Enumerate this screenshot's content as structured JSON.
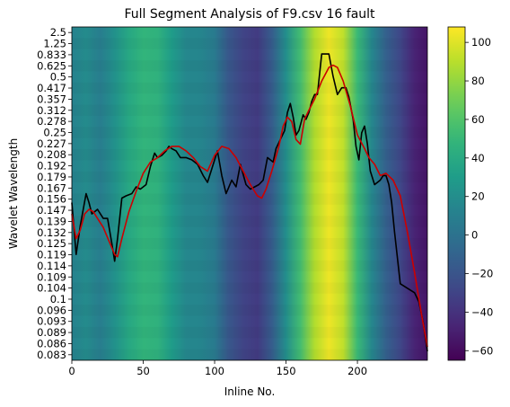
{
  "chart_data": {
    "type": "heatmap",
    "title": "Full Segment Analysis of F9.csv 16 fault",
    "xlabel": "Inline No.",
    "ylabel": "Wavelet Wavelength",
    "xlim": [
      0,
      249
    ],
    "x_ticks": [
      0,
      50,
      100,
      150,
      200
    ],
    "y_tick_labels": [
      "2.5",
      "1.25",
      "0.833",
      "0.625",
      "0.5",
      "0.417",
      "0.357",
      "0.312",
      "0.278",
      "0.25",
      "0.227",
      "0.208",
      "0.192",
      "0.179",
      "0.167",
      "0.156",
      "0.147",
      "0.139",
      "0.132",
      "0.125",
      "0.119",
      "0.114",
      "0.109",
      "0.104",
      "0.1",
      "0.096",
      "0.093",
      "0.089",
      "0.086",
      "0.083"
    ],
    "colorbar": {
      "colormap": "viridis",
      "range": [
        -65,
        108
      ],
      "ticks": [
        -60,
        -40,
        -20,
        0,
        20,
        40,
        60,
        80,
        100
      ]
    },
    "heatmap_columns": [
      {
        "x": 0,
        "value": 12
      },
      {
        "x": 10,
        "value": 18
      },
      {
        "x": 20,
        "value": 8
      },
      {
        "x": 30,
        "value": 22
      },
      {
        "x": 40,
        "value": 38
      },
      {
        "x": 50,
        "value": 48
      },
      {
        "x": 60,
        "value": 46
      },
      {
        "x": 70,
        "value": 30
      },
      {
        "x": 80,
        "value": 15
      },
      {
        "x": 90,
        "value": 14
      },
      {
        "x": 100,
        "value": 6
      },
      {
        "x": 110,
        "value": -18
      },
      {
        "x": 120,
        "value": -30
      },
      {
        "x": 130,
        "value": -35
      },
      {
        "x": 140,
        "value": -15
      },
      {
        "x": 150,
        "value": 20
      },
      {
        "x": 160,
        "value": 55
      },
      {
        "x": 170,
        "value": 88
      },
      {
        "x": 180,
        "value": 104
      },
      {
        "x": 190,
        "value": 92
      },
      {
        "x": 200,
        "value": 52
      },
      {
        "x": 210,
        "value": 15
      },
      {
        "x": 220,
        "value": -12
      },
      {
        "x": 230,
        "value": -28
      },
      {
        "x": 240,
        "value": -48
      },
      {
        "x": 249,
        "value": -55
      }
    ],
    "series": [
      {
        "color": "#000000",
        "x": [
          0,
          3,
          6,
          10,
          12,
          14,
          16,
          18,
          20,
          22,
          25,
          28,
          30,
          32,
          35,
          38,
          42,
          45,
          48,
          52,
          55,
          58,
          60,
          63,
          66,
          68,
          70,
          73,
          76,
          80,
          84,
          88,
          92,
          95,
          98,
          102,
          105,
          108,
          112,
          115,
          118,
          122,
          125,
          128,
          131,
          134,
          137,
          141,
          143,
          146,
          149,
          151,
          153,
          155,
          157,
          159,
          162,
          164,
          166,
          168,
          170,
          172,
          175,
          177,
          180,
          183,
          186,
          189,
          192,
          194,
          197,
          199,
          201,
          203,
          205,
          207,
          209,
          212,
          216,
          218,
          220,
          222,
          224,
          226,
          230,
          235,
          240,
          243,
          246,
          249
        ],
        "y": [
          0.8,
          -1.5,
          -0.2,
          1.2,
          0.8,
          0.3,
          0.4,
          0.5,
          0.3,
          0.1,
          0.1,
          -1.0,
          -1.8,
          -0.8,
          1.0,
          1.1,
          1.2,
          1.5,
          1.4,
          1.6,
          2.4,
          3.0,
          2.8,
          2.9,
          3.1,
          3.3,
          3.2,
          3.1,
          2.8,
          2.8,
          2.7,
          2.5,
          2.0,
          1.7,
          2.3,
          3.1,
          2.0,
          1.2,
          1.8,
          1.5,
          2.5,
          1.6,
          1.4,
          1.5,
          1.6,
          1.8,
          2.8,
          2.6,
          3.2,
          3.6,
          4.0,
          4.8,
          5.2,
          4.6,
          3.8,
          4.0,
          4.7,
          4.5,
          4.8,
          5.3,
          5.6,
          5.6,
          7.4,
          7.4,
          7.4,
          6.4,
          5.6,
          5.9,
          5.9,
          5.5,
          4.5,
          3.3,
          2.7,
          3.9,
          4.2,
          3.4,
          2.2,
          1.6,
          1.8,
          2.0,
          2.0,
          1.6,
          0.8,
          -0.5,
          -2.8,
          -3.0,
          -3.2,
          -3.6,
          -4.5,
          -5.8
        ]
      },
      {
        "color": "#cc0000",
        "x": [
          0,
          3,
          6,
          9,
          12,
          15,
          18,
          22,
          26,
          30,
          32,
          35,
          40,
          45,
          50,
          55,
          60,
          65,
          70,
          75,
          80,
          85,
          90,
          95,
          100,
          105,
          110,
          115,
          120,
          125,
          130,
          133,
          136,
          140,
          145,
          148,
          151,
          154,
          157,
          160,
          163,
          166,
          170,
          175,
          180,
          183,
          186,
          190,
          195,
          200,
          205,
          208,
          212,
          216,
          220,
          225,
          230,
          235,
          240,
          245,
          249
        ],
        "y": [
          0.3,
          -0.8,
          -0.4,
          0.3,
          0.5,
          0.4,
          0.1,
          -0.3,
          -0.9,
          -1.5,
          -1.6,
          -0.8,
          0.4,
          1.3,
          2.1,
          2.6,
          2.8,
          3.1,
          3.3,
          3.3,
          3.1,
          2.8,
          2.4,
          2.2,
          2.9,
          3.3,
          3.2,
          2.8,
          2.2,
          1.6,
          1.1,
          1.0,
          1.4,
          2.2,
          3.3,
          4.2,
          4.6,
          4.4,
          3.6,
          3.4,
          4.5,
          4.9,
          5.4,
          6.2,
          6.8,
          6.9,
          6.8,
          6.2,
          5.1,
          3.8,
          3.2,
          2.8,
          2.5,
          2.0,
          2.1,
          1.8,
          1.1,
          -0.5,
          -2.3,
          -4.2,
          -5.6
        ]
      }
    ]
  }
}
